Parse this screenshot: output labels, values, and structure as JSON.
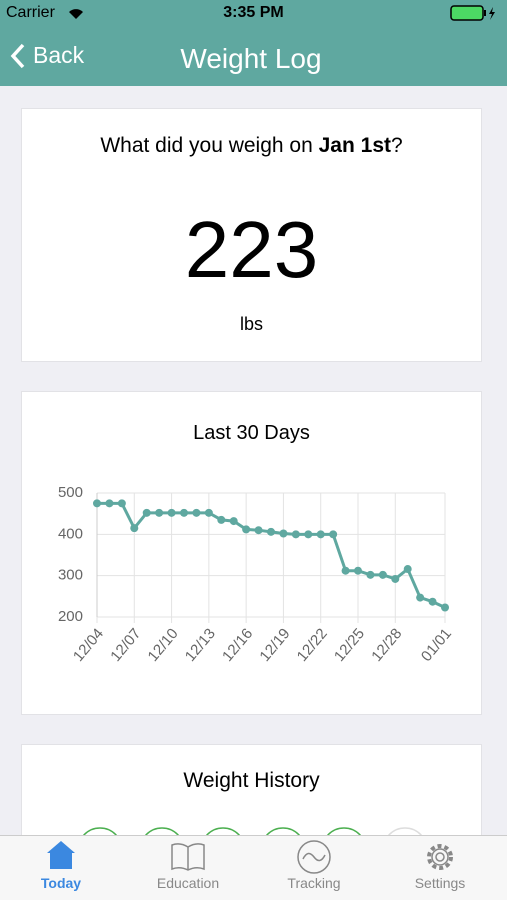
{
  "status_bar": {
    "carrier": "Carrier",
    "time": "3:35 PM"
  },
  "nav": {
    "back": "Back",
    "title": "Weight Log"
  },
  "prompt_card": {
    "question": "What did you weigh on",
    "date": "Jan 1st",
    "suffix": "?",
    "weight": 223,
    "unit": "lbs"
  },
  "chart_data": {
    "type": "line",
    "title": "Last 30 Days",
    "categories": [
      "12/04",
      null,
      null,
      "12/07",
      null,
      null,
      "12/10",
      null,
      null,
      "12/13",
      null,
      null,
      "12/16",
      null,
      null,
      "12/19",
      null,
      null,
      "12/22",
      null,
      null,
      "12/25",
      null,
      null,
      "12/28",
      null,
      null,
      null,
      "01/01"
    ],
    "values": [
      475,
      475,
      475,
      415,
      452,
      452,
      452,
      452,
      452,
      452,
      435,
      432,
      412,
      410,
      406,
      402,
      400,
      400,
      400,
      400,
      312,
      312,
      302,
      302,
      292,
      316,
      247,
      237,
      223
    ],
    "color": "#5fa8a0",
    "ylim": [
      200,
      500
    ],
    "yticks": [
      200,
      300,
      400,
      500
    ],
    "grid": true
  },
  "history_card": {
    "title": "Weight History"
  },
  "tab_bar": {
    "tabs": [
      "Today",
      "Education",
      "Tracking",
      "Settings"
    ]
  }
}
